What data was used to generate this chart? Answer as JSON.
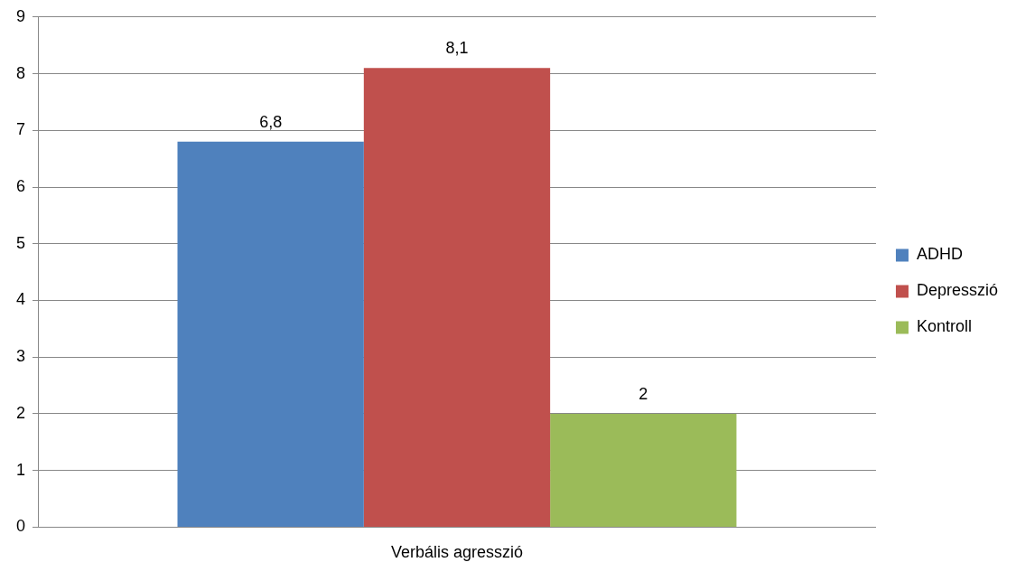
{
  "chart_data": {
    "type": "bar",
    "categories": [
      "Verbális agresszió"
    ],
    "series": [
      {
        "name": "ADHD",
        "color": "#4f81bd",
        "values": [
          6.8
        ],
        "value_labels": [
          "6,8"
        ]
      },
      {
        "name": "Depresszió",
        "color": "#c0504d",
        "values": [
          8.1
        ],
        "value_labels": [
          "8,1"
        ]
      },
      {
        "name": "Kontroll",
        "color": "#9bbb59",
        "values": [
          2
        ],
        "value_labels": [
          "2"
        ]
      }
    ],
    "ylim": [
      0,
      9
    ],
    "yticks": [
      0,
      1,
      2,
      3,
      4,
      5,
      6,
      7,
      8,
      9
    ],
    "grid": "y",
    "legend": "right"
  }
}
